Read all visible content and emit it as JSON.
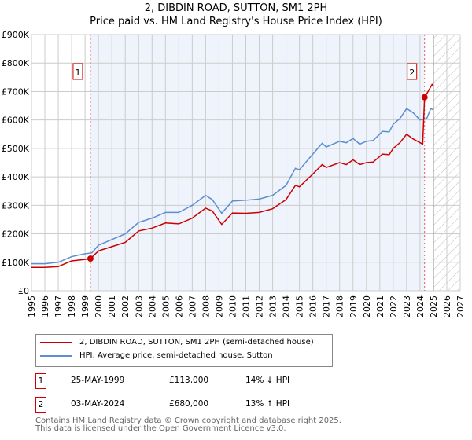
{
  "chart_data": {
    "type": "line",
    "title": "2, DIBDIN ROAD, SUTTON, SM1 2PH",
    "subtitle": "Price paid vs. HM Land Registry's House Price Index (HPI)",
    "xlim": [
      1995,
      2027
    ],
    "ylim": [
      0,
      900000
    ],
    "x_ticks": [
      "1995",
      "1996",
      "1997",
      "1998",
      "1999",
      "2000",
      "2001",
      "2002",
      "2003",
      "2004",
      "2005",
      "2006",
      "2007",
      "2008",
      "2009",
      "2010",
      "2011",
      "2012",
      "2013",
      "2014",
      "2015",
      "2016",
      "2017",
      "2018",
      "2019",
      "2020",
      "2021",
      "2022",
      "2023",
      "2024",
      "2025",
      "2026",
      "2027"
    ],
    "y_ticks": [
      {
        "v": 0,
        "l": "£0"
      },
      {
        "v": 100000,
        "l": "£100K"
      },
      {
        "v": 200000,
        "l": "£200K"
      },
      {
        "v": 300000,
        "l": "£300K"
      },
      {
        "v": 400000,
        "l": "£400K"
      },
      {
        "v": 500000,
        "l": "£500K"
      },
      {
        "v": 600000,
        "l": "£600K"
      },
      {
        "v": 700000,
        "l": "£700K"
      },
      {
        "v": 800000,
        "l": "£800K"
      },
      {
        "v": 900000,
        "l": "£900K"
      }
    ],
    "grid": true,
    "shaded_between": [
      1999.4,
      2024.34
    ],
    "forecast_hatched_from": 2025.0,
    "series": [
      {
        "name": "2, DIBDIN ROAD, SUTTON, SM1 2PH (semi-detached house)",
        "color": "#cc0000",
        "x": [
          1995,
          1996,
          1997,
          1998,
          1999,
          1999.4,
          2000,
          2001,
          2002,
          2003,
          2004,
          2005,
          2006,
          2007,
          2008,
          2008.5,
          2009.2,
          2010,
          2011,
          2012,
          2013,
          2014,
          2014.7,
          2015,
          2016,
          2016.7,
          2017,
          2018,
          2018.5,
          2019,
          2019.5,
          2020,
          2020.5,
          2021.2,
          2021.7,
          2022,
          2022.5,
          2023,
          2023.5,
          2024.2,
          2024.34,
          2024.6,
          2024.9,
          2025
        ],
        "y": [
          82000,
          82000,
          85000,
          105000,
          110000,
          113000,
          140000,
          155000,
          170000,
          210000,
          220000,
          238000,
          235000,
          255000,
          290000,
          280000,
          233000,
          273000,
          272000,
          275000,
          288000,
          320000,
          370000,
          365000,
          410000,
          443000,
          433000,
          450000,
          443000,
          460000,
          443000,
          450000,
          452000,
          480000,
          478000,
          500000,
          520000,
          550000,
          533000,
          515000,
          680000,
          700000,
          725000,
          720000
        ]
      },
      {
        "name": "HPI: Average price, semi-detached house, Sutton",
        "color": "#5b8fd0",
        "x": [
          1995,
          1996,
          1997,
          1998,
          1999,
          1999.5,
          2000,
          2001,
          2002,
          2003,
          2004,
          2005,
          2006,
          2007,
          2008,
          2008.5,
          2009.2,
          2010,
          2011,
          2012,
          2013,
          2014,
          2014.7,
          2015,
          2016,
          2016.7,
          2017,
          2018,
          2018.5,
          2019,
          2019.5,
          2020,
          2020.5,
          2021.2,
          2021.7,
          2022,
          2022.5,
          2023,
          2023.5,
          2024,
          2024.5,
          2024.8,
          2025
        ],
        "y": [
          95000,
          95000,
          100000,
          120000,
          130000,
          133000,
          160000,
          180000,
          200000,
          240000,
          255000,
          275000,
          275000,
          300000,
          335000,
          320000,
          272000,
          315000,
          318000,
          322000,
          335000,
          370000,
          430000,
          425000,
          480000,
          518000,
          505000,
          525000,
          520000,
          535000,
          515000,
          525000,
          528000,
          560000,
          558000,
          585000,
          605000,
          640000,
          625000,
          600000,
          605000,
          640000,
          635000
        ]
      }
    ],
    "annotations": [
      {
        "label": "1",
        "x": 1999.4,
        "y": 113000
      },
      {
        "label": "2",
        "x": 2024.34,
        "y": 680000
      }
    ]
  },
  "sales": [
    {
      "num": "1",
      "date": "25-MAY-1999",
      "price": "£113,000",
      "hpi": "14% ↓ HPI"
    },
    {
      "num": "2",
      "date": "03-MAY-2024",
      "price": "£680,000",
      "hpi": "13% ↑ HPI"
    }
  ],
  "footer": {
    "line1": "Contains HM Land Registry data © Crown copyright and database right 2025.",
    "line2": "This data is licensed under the Open Government Licence v3.0."
  }
}
